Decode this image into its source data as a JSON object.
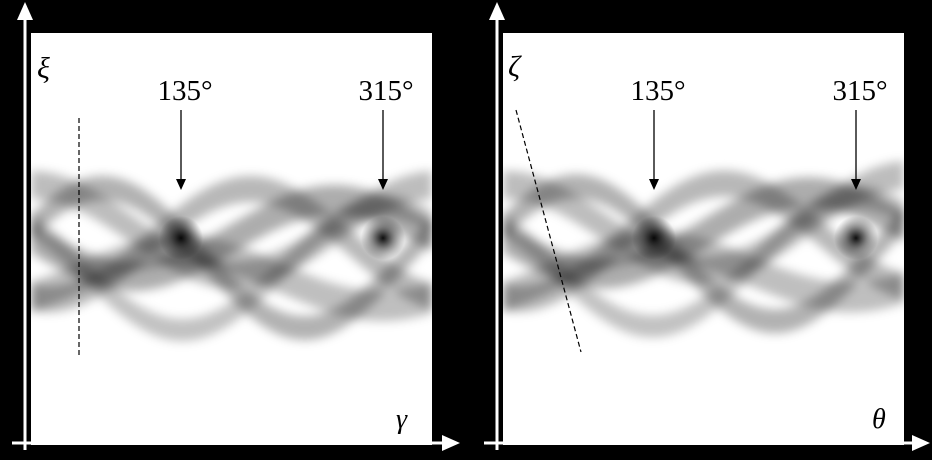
{
  "panels": [
    {
      "id": "left",
      "y_axis_label": "ξ",
      "x_axis_label": "γ",
      "arrow_labels": [
        "135°",
        "315°"
      ],
      "guide_line": "vertical dashed"
    },
    {
      "id": "right",
      "y_axis_label": "ζ",
      "x_axis_label": "θ",
      "arrow_labels": [
        "135°",
        "315°"
      ],
      "guide_line": "slanted dashed"
    }
  ],
  "colors": {
    "background": "#000000",
    "panel": "#ffffff",
    "band": "#000000",
    "axis": "#ffffff"
  }
}
